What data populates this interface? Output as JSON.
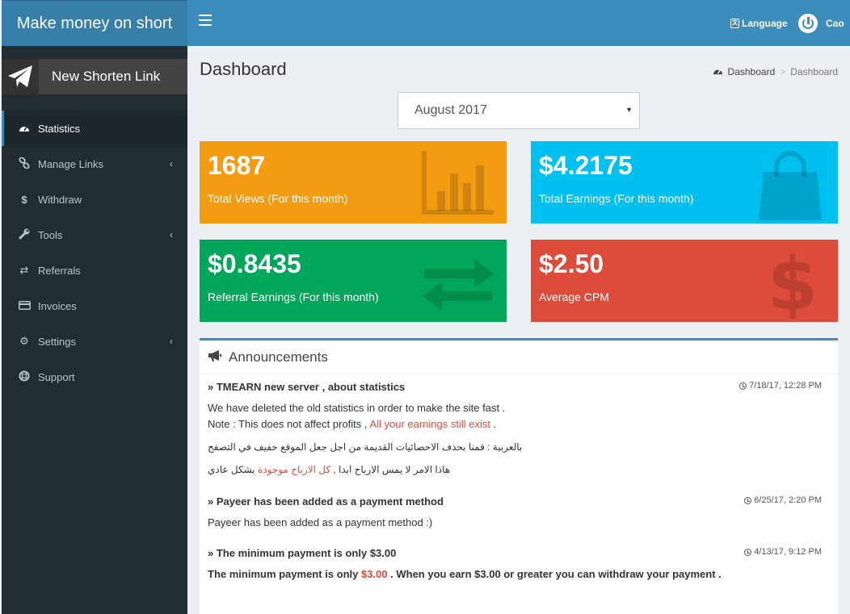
{
  "brand": {
    "title": "Make money on short"
  },
  "header": {
    "language_label": "Language",
    "user_name": "Cao"
  },
  "sidebar": {
    "new_link_label": "New Shorten Link",
    "items": [
      {
        "label": "Statistics",
        "icon": "dashboard-icon",
        "active": true,
        "has_children": false
      },
      {
        "label": "Manage Links",
        "icon": "link-icon",
        "active": false,
        "has_children": true
      },
      {
        "label": "Withdraw",
        "icon": "dollar-icon",
        "active": false,
        "has_children": false
      },
      {
        "label": "Tools",
        "icon": "wrench-icon",
        "active": false,
        "has_children": true
      },
      {
        "label": "Referrals",
        "icon": "exchange-icon",
        "active": false,
        "has_children": false
      },
      {
        "label": "Invoices",
        "icon": "credit-card-icon",
        "active": false,
        "has_children": false
      },
      {
        "label": "Settings",
        "icon": "gears-icon",
        "active": false,
        "has_children": true
      },
      {
        "label": "Support",
        "icon": "life-ring-icon",
        "active": false,
        "has_children": false
      }
    ]
  },
  "page": {
    "title": "Dashboard",
    "breadcrumb": {
      "home": "Dashboard",
      "current": "Dashboard"
    },
    "month_select": {
      "value": "August 2017"
    }
  },
  "stats": [
    {
      "value": "1687",
      "label": "Total Views (For this month)",
      "color": "#f39c12",
      "icon": "bar-chart-icon"
    },
    {
      "value": "$4.2175",
      "label": "Total Earnings (For this month)",
      "color": "#00c0ef",
      "icon": "shopping-bag-icon"
    },
    {
      "value": "$0.8435",
      "label": "Referral Earnings (For this month)",
      "color": "#00a65a",
      "icon": "exchange-icon"
    },
    {
      "value": "$2.50",
      "label": "Average CPM",
      "color": "#dd4b39",
      "icon": "dollar-icon"
    }
  ],
  "announcements": {
    "title": "Announcements",
    "items": [
      {
        "title": "TMEARN new server , about statistics",
        "time": "7/18/17, 12:28 PM",
        "line1": "We have deleted the old statistics in order to make the site fast .",
        "line2_pre": "Note : This does not affect profits , ",
        "line2_red": "All your earnings still exist",
        "line2_post": " .",
        "arabic1": "بالعربية : قمنا بحذف الاحصائيات القديمة من اجل جعل الموقع خفيف في التصفح",
        "arabic2_pre": "هاذا الامر لا يمس الارباح ابدا , ",
        "arabic2_red": "كل الارباح موجودة",
        "arabic2_post": " بشكل عادي"
      },
      {
        "title": "Payeer has been added as a payment method",
        "time": "6/25/17, 2:20 PM",
        "body": "Payeer has been added as a payment method :)"
      },
      {
        "title": "The minimum payment is only $3.00",
        "time": "4/13/17, 9:12 PM",
        "body_pre": "The minimum payment is only ",
        "body_red": "$3.00",
        "body_post": " . When you earn $3.00 or greater you can withdraw your payment ."
      }
    ]
  }
}
